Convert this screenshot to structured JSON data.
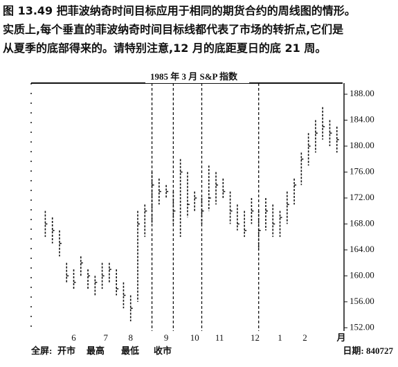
{
  "caption": {
    "lines": [
      "图 13.49  把菲波纳奇时间目标应用于相同的期货合约的周线图的情形。",
      "实质上,每个垂直的菲波纳奇时间目标线都代表了市场的转折点,它们是",
      "从夏季的底部得来的。请特别注意,12 月的底距夏日的底 21 周。"
    ]
  },
  "chart_data": {
    "type": "hlc",
    "title": "1985 年 3 月 S&P 指数",
    "x": [
      0,
      1,
      2,
      3,
      4,
      5,
      6,
      7,
      8,
      9,
      10,
      11,
      12,
      13,
      14,
      15,
      16,
      17,
      18,
      19,
      20,
      21,
      22,
      23,
      24,
      25,
      26,
      27,
      28,
      29,
      30,
      31,
      32,
      33,
      34,
      35,
      36,
      37,
      38,
      39,
      40,
      41
    ],
    "high": [
      170,
      169,
      167,
      162,
      161,
      163,
      161,
      160,
      162,
      162,
      161,
      159,
      157,
      170,
      171,
      176,
      175,
      174,
      173,
      178,
      176,
      173,
      172,
      177,
      176,
      175,
      173,
      171,
      170,
      172,
      170,
      172,
      171,
      170,
      173,
      175,
      179,
      182,
      184,
      186,
      184,
      183
    ],
    "low": [
      166,
      165,
      163,
      159,
      158,
      160,
      158,
      157,
      158,
      159,
      157,
      155,
      153,
      156,
      166,
      168,
      171,
      172,
      168,
      166,
      169,
      170,
      168,
      170,
      171,
      172,
      168,
      167,
      166,
      168,
      164,
      167,
      166,
      166,
      168,
      171,
      174,
      177,
      179,
      181,
      180,
      179
    ],
    "close": [
      168,
      167,
      165,
      160,
      159,
      162,
      160,
      159,
      160,
      161,
      158,
      157,
      155,
      168,
      170,
      174,
      173,
      173,
      170,
      176,
      171,
      172,
      170,
      172,
      174,
      173,
      170,
      168,
      167,
      170,
      167,
      170,
      168,
      169,
      171,
      174,
      178,
      180,
      182,
      183,
      182,
      181
    ],
    "time_lines": [
      15,
      18,
      22,
      30
    ],
    "xlim": [
      -1.5,
      42
    ],
    "xticks": [
      {
        "value": 4,
        "label": "6"
      },
      {
        "value": 8.5,
        "label": "7"
      },
      {
        "value": 12,
        "label": "8"
      },
      {
        "value": 17,
        "label": "9"
      },
      {
        "value": 21,
        "label": "10"
      },
      {
        "value": 24.5,
        "label": "11"
      },
      {
        "value": 29.5,
        "label": "12"
      },
      {
        "value": 33,
        "label": "1"
      },
      {
        "value": 36.5,
        "label": "2"
      }
    ],
    "x_label": "月",
    "ylim": [
      151.5,
      189.5
    ],
    "yticks": [
      {
        "value": 152,
        "label": "152.00"
      },
      {
        "value": 156,
        "label": "156.00"
      },
      {
        "value": 160,
        "label": "160.00"
      },
      {
        "value": 164,
        "label": "164.00"
      },
      {
        "value": 168,
        "label": "168.00"
      },
      {
        "value": 172,
        "label": "172.00"
      },
      {
        "value": 176,
        "label": "176.00"
      },
      {
        "value": 180,
        "label": "180.00"
      },
      {
        "value": 184,
        "label": "184.00"
      },
      {
        "value": 188,
        "label": "188.00"
      }
    ],
    "color": "#111111"
  },
  "footer": {
    "screen": "全屏:",
    "open": "开市",
    "high": "最高",
    "low": "最低",
    "close": "收市",
    "date": "日期: 840727"
  }
}
